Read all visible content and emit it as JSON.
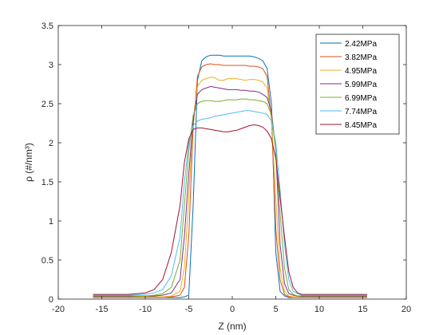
{
  "chart_data": {
    "type": "line",
    "xlabel": "Z (nm)",
    "ylabel": "ρ (#/nm³)",
    "xlim": [
      -20,
      20
    ],
    "ylim": [
      0,
      3.5
    ],
    "xticks": [
      "-20",
      "-15",
      "-10",
      "-5",
      "0",
      "5",
      "10",
      "15",
      "20"
    ],
    "yticks": [
      "0",
      "0.5",
      "1",
      "1.5",
      "2",
      "2.5",
      "3",
      "3.5"
    ],
    "grid": false,
    "legend_position": "top-right",
    "x": [
      -16,
      -14,
      -12,
      -10,
      -9,
      -8,
      -7,
      -6,
      -5.5,
      -5,
      -4.5,
      -4,
      -3.5,
      -3,
      -2.5,
      -2,
      -1.5,
      -1,
      -0.5,
      0,
      0.5,
      1,
      1.5,
      2,
      2.5,
      3,
      3.5,
      4,
      4.5,
      5,
      5.5,
      6,
      6.5,
      7,
      7.5,
      8,
      9,
      10,
      12,
      14,
      15.5
    ],
    "series": [
      {
        "name": "2.42MPa",
        "color": "#0072BD",
        "values": [
          0.02,
          0.02,
          0.02,
          0.02,
          0.02,
          0.02,
          0.02,
          0.02,
          0.03,
          0.05,
          1.2,
          2.8,
          3.05,
          3.1,
          3.12,
          3.12,
          3.12,
          3.11,
          3.11,
          3.11,
          3.11,
          3.11,
          3.11,
          3.11,
          3.1,
          3.08,
          3.05,
          2.95,
          2.5,
          0.6,
          0.1,
          0.04,
          0.02,
          0.02,
          0.02,
          0.02,
          0.02,
          0.02,
          0.02,
          0.02,
          0.02
        ]
      },
      {
        "name": "3.82MPa",
        "color": "#D95319",
        "values": [
          0.02,
          0.02,
          0.02,
          0.02,
          0.02,
          0.02,
          0.03,
          0.05,
          0.15,
          0.8,
          2.2,
          2.85,
          2.97,
          3.0,
          3.01,
          3.0,
          3.0,
          2.99,
          2.99,
          2.99,
          2.99,
          2.99,
          2.99,
          2.98,
          2.98,
          2.97,
          2.95,
          2.85,
          2.3,
          0.9,
          0.25,
          0.06,
          0.03,
          0.02,
          0.02,
          0.02,
          0.02,
          0.02,
          0.02,
          0.02,
          0.02
        ]
      },
      {
        "name": "4.95MPa",
        "color": "#EDB120",
        "values": [
          0.03,
          0.03,
          0.03,
          0.03,
          0.03,
          0.03,
          0.04,
          0.1,
          0.4,
          1.3,
          2.3,
          2.72,
          2.8,
          2.82,
          2.84,
          2.83,
          2.8,
          2.8,
          2.82,
          2.82,
          2.82,
          2.81,
          2.8,
          2.81,
          2.81,
          2.8,
          2.78,
          2.7,
          2.3,
          1.3,
          0.4,
          0.1,
          0.04,
          0.03,
          0.03,
          0.03,
          0.03,
          0.03,
          0.03,
          0.03,
          0.03
        ]
      },
      {
        "name": "5.99MPa",
        "color": "#7E2F8E",
        "values": [
          0.04,
          0.04,
          0.04,
          0.04,
          0.04,
          0.05,
          0.08,
          0.25,
          0.8,
          1.6,
          2.3,
          2.62,
          2.68,
          2.7,
          2.72,
          2.71,
          2.7,
          2.69,
          2.68,
          2.68,
          2.68,
          2.67,
          2.67,
          2.66,
          2.66,
          2.65,
          2.62,
          2.58,
          2.4,
          1.9,
          0.7,
          0.2,
          0.07,
          0.05,
          0.04,
          0.04,
          0.04,
          0.04,
          0.04,
          0.04,
          0.04
        ]
      },
      {
        "name": "6.99MPa",
        "color": "#77AC30",
        "values": [
          0.03,
          0.03,
          0.03,
          0.04,
          0.05,
          0.07,
          0.15,
          0.5,
          1.2,
          1.9,
          2.35,
          2.5,
          2.53,
          2.54,
          2.54,
          2.53,
          2.53,
          2.54,
          2.55,
          2.55,
          2.55,
          2.56,
          2.56,
          2.55,
          2.55,
          2.54,
          2.53,
          2.5,
          2.35,
          1.9,
          1.1,
          0.4,
          0.12,
          0.06,
          0.04,
          0.03,
          0.03,
          0.03,
          0.03,
          0.03,
          0.03
        ]
      },
      {
        "name": "7.74MPa",
        "color": "#4DBEEE",
        "values": [
          0.05,
          0.05,
          0.05,
          0.06,
          0.08,
          0.12,
          0.3,
          0.8,
          1.5,
          2.0,
          2.22,
          2.28,
          2.3,
          2.31,
          2.32,
          2.34,
          2.35,
          2.36,
          2.37,
          2.38,
          2.39,
          2.4,
          2.41,
          2.41,
          2.4,
          2.39,
          2.38,
          2.36,
          2.28,
          2.0,
          1.4,
          0.7,
          0.25,
          0.1,
          0.07,
          0.05,
          0.05,
          0.05,
          0.05,
          0.05,
          0.05
        ]
      },
      {
        "name": "8.45MPa",
        "color": "#A2142F",
        "values": [
          0.06,
          0.06,
          0.06,
          0.08,
          0.12,
          0.25,
          0.6,
          1.2,
          1.75,
          2.05,
          2.17,
          2.19,
          2.19,
          2.18,
          2.17,
          2.16,
          2.15,
          2.14,
          2.14,
          2.15,
          2.16,
          2.18,
          2.2,
          2.22,
          2.23,
          2.22,
          2.2,
          2.15,
          2.05,
          1.8,
          1.3,
          0.8,
          0.35,
          0.15,
          0.08,
          0.06,
          0.06,
          0.06,
          0.06,
          0.06,
          0.06
        ]
      }
    ]
  }
}
